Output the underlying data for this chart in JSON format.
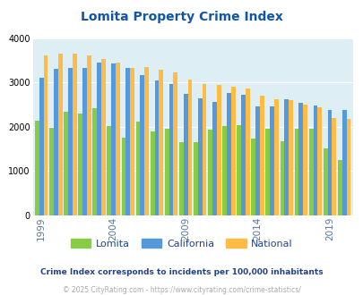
{
  "title": "Lomita Property Crime Index",
  "years": [
    1999,
    2000,
    2001,
    2002,
    2003,
    2004,
    2005,
    2006,
    2007,
    2008,
    2009,
    2010,
    2011,
    2012,
    2013,
    2014,
    2015,
    2016,
    2017,
    2018,
    2019,
    2020
  ],
  "lomita": [
    2130,
    1980,
    2350,
    2300,
    2420,
    2010,
    1750,
    2110,
    1900,
    1950,
    1650,
    1650,
    1940,
    2010,
    2040,
    1730,
    1960,
    1670,
    1960,
    1950,
    1510,
    1250
  ],
  "california": [
    3100,
    3310,
    3340,
    3340,
    3450,
    3440,
    3330,
    3160,
    3050,
    2960,
    2750,
    2640,
    2570,
    2760,
    2720,
    2460,
    2470,
    2630,
    2550,
    2490,
    2380,
    2390
  ],
  "national": [
    3620,
    3650,
    3650,
    3620,
    3530,
    3450,
    3340,
    3350,
    3300,
    3230,
    3060,
    2960,
    2940,
    2900,
    2870,
    2710,
    2620,
    2610,
    2500,
    2450,
    2200,
    2170
  ],
  "lomita_color": "#88cc44",
  "california_color": "#5599dd",
  "national_color": "#ffbb44",
  "bg_color": "#ddeef5",
  "title_color": "#1155aa",
  "ylim": [
    0,
    4000
  ],
  "xlabel_ticks": [
    1999,
    2004,
    2009,
    2014,
    2019
  ],
  "footnote1": "Crime Index corresponds to incidents per 100,000 inhabitants",
  "footnote2": "© 2025 CityRating.com - https://www.cityrating.com/crime-statistics/",
  "footnote1_color": "#224488",
  "footnote2_color": "#aaaaaa",
  "legend_labels": [
    "Lomita",
    "California",
    "National"
  ]
}
